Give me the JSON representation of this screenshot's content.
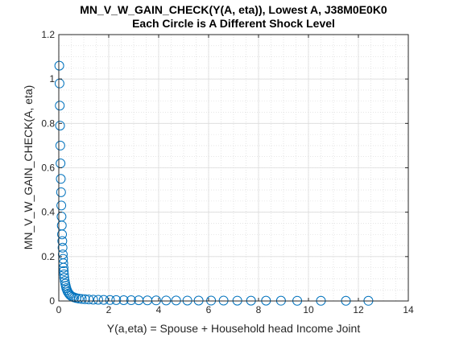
{
  "chart_data": {
    "type": "scatter",
    "title": "MN_V_W_GAIN_CHECK(Y(A, eta)), Lowest A, J38M0E0K0",
    "subtitle": "Each Circle is A Different Shock Level",
    "xlabel": "Y(a,eta) = Spouse + Household head Income Joint",
    "ylabel": "MN_V_W_GAIN_CHECK(A, eta)",
    "xlim": [
      0,
      14
    ],
    "ylim": [
      0,
      1.2
    ],
    "xticks": [
      "0",
      "2",
      "4",
      "6",
      "8",
      "10",
      "12",
      "14"
    ],
    "yticks": [
      "0",
      "0.2",
      "0.4",
      "0.6",
      "0.8",
      "1",
      "1.2"
    ],
    "grid": true,
    "minor_grid": true,
    "marker": "circle",
    "marker_color": "#0072BD",
    "x": [
      0.02,
      0.03,
      0.04,
      0.05,
      0.06,
      0.07,
      0.08,
      0.09,
      0.1,
      0.11,
      0.12,
      0.13,
      0.14,
      0.15,
      0.16,
      0.17,
      0.18,
      0.19,
      0.2,
      0.21,
      0.22,
      0.24,
      0.26,
      0.28,
      0.3,
      0.33,
      0.36,
      0.4,
      0.44,
      0.49,
      0.55,
      0.62,
      0.7,
      0.8,
      0.92,
      1.05,
      1.2,
      1.38,
      1.58,
      1.8,
      2.05,
      2.3,
      2.6,
      2.9,
      3.2,
      3.55,
      3.9,
      4.3,
      4.7,
      5.15,
      5.6,
      6.1,
      6.6,
      7.15,
      7.7,
      8.3,
      8.9,
      9.55,
      10.5,
      11.5,
      12.4
    ],
    "y": [
      1.06,
      0.98,
      0.88,
      0.79,
      0.7,
      0.62,
      0.55,
      0.49,
      0.43,
      0.38,
      0.34,
      0.3,
      0.27,
      0.24,
      0.21,
      0.19,
      0.17,
      0.15,
      0.135,
      0.12,
      0.105,
      0.09,
      0.078,
      0.068,
      0.058,
      0.049,
      0.041,
      0.034,
      0.028,
      0.023,
      0.019,
      0.016,
      0.013,
      0.011,
      0.009,
      0.008,
      0.007,
      0.006,
      0.0055,
      0.005,
      0.0045,
      0.004,
      0.0037,
      0.0034,
      0.0031,
      0.0028,
      0.0026,
      0.0024,
      0.0022,
      0.002,
      0.0018,
      0.0017,
      0.0016,
      0.0015,
      0.0014,
      0.0013,
      0.0012,
      0.0011,
      0.001,
      0.0009,
      0.0008
    ]
  }
}
